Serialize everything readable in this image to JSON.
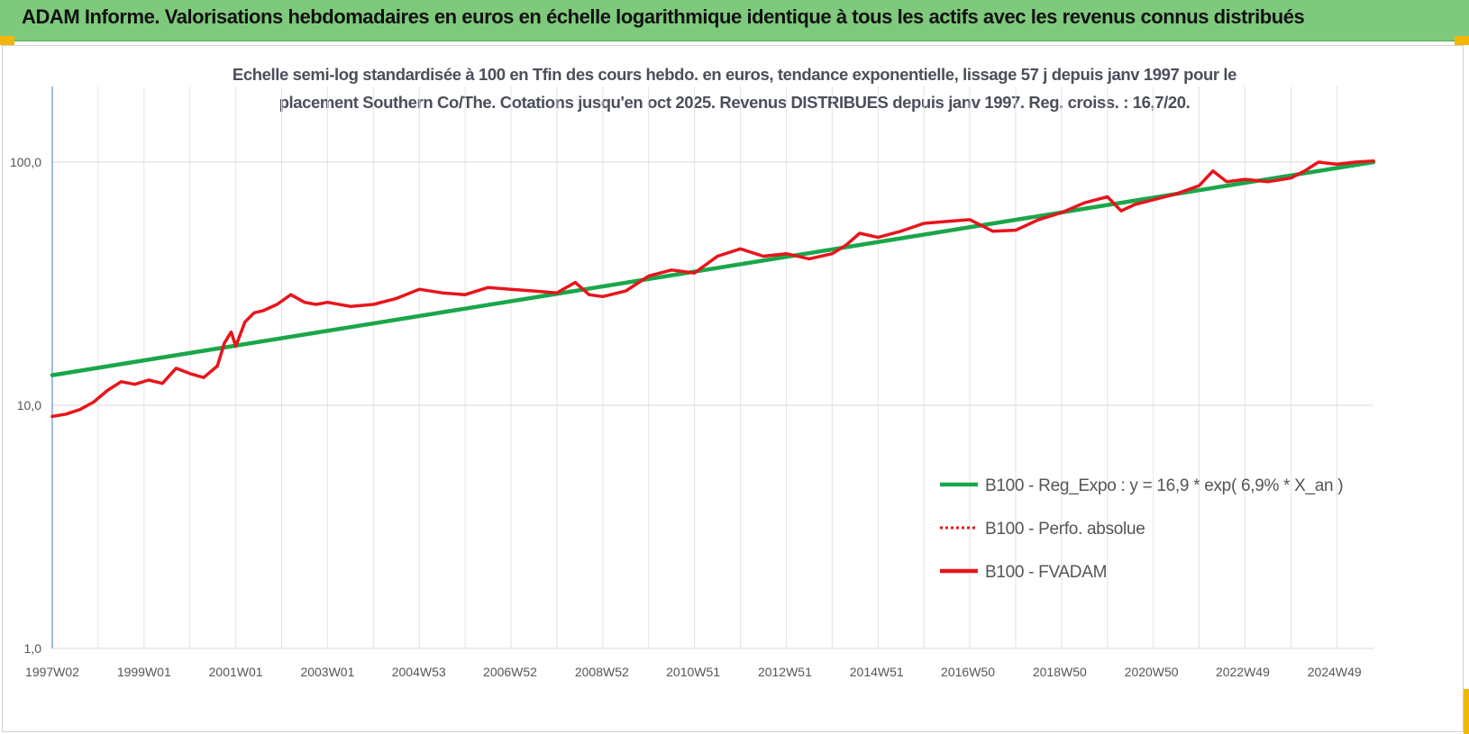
{
  "header": {
    "title": "ADAM Informe. Valorisations hebdomadaires en euros en échelle logarithmique identique à tous les actifs avec les revenus connus distribués",
    "background": "#7ec97c"
  },
  "chart_data": {
    "type": "line",
    "title_line1": "Echelle semi-log standardisée à 100 en Tfin des cours hebdo. en euros, tendance exponentielle, lissage 57 j depuis janv 1997 pour le",
    "title_line2": "placement Southern Co/The. Cotations jusqu'en oct 2025.  Revenus DISTRIBUES depuis janv 1997.  Reg. croiss. : 16,7/20.",
    "y_scale": "log",
    "ylim": [
      1,
      200
    ],
    "y_ticks": [
      1,
      10,
      100
    ],
    "y_tick_labels": [
      "1,0",
      "10,0",
      "100,0"
    ],
    "xlim": [
      1997.0,
      2025.8
    ],
    "x_ticks": [
      1997.0,
      1999.0,
      2001.0,
      2003.0,
      2004.99,
      2006.98,
      2008.98,
      2010.97,
      2012.97,
      2014.97,
      2016.96,
      2018.96,
      2020.96,
      2022.95,
      2024.95
    ],
    "x_tick_labels": [
      "1997W02",
      "1999W01",
      "2001W01",
      "2003W01",
      "2004W53",
      "2006W52",
      "2008W52",
      "2010W51",
      "2012W51",
      "2014W51",
      "2016W50",
      "2018W50",
      "2020W50",
      "2022W49",
      "2024W49"
    ],
    "grid": true,
    "legend_position": "bottom-right",
    "series": [
      {
        "name": "B100 - Reg_Expo : y = 16,9 * exp( 6,9% *  X_an )",
        "color": "#1aa64a",
        "style": "solid",
        "x": [
          1997.0,
          2025.8
        ],
        "values": [
          13.3,
          100.0
        ]
      },
      {
        "name": "B100 - Perfo. absolue",
        "color": "#e8141c",
        "style": "dotted",
        "x": [],
        "values": []
      },
      {
        "name": "B100 - FVADAM",
        "color": "#e8141c",
        "style": "solid",
        "x": [
          1997.0,
          1997.3,
          1997.6,
          1997.9,
          1998.2,
          1998.5,
          1998.8,
          1999.1,
          1999.4,
          1999.7,
          2000.0,
          2000.3,
          2000.6,
          2000.75,
          2000.9,
          2001.0,
          2001.2,
          2001.4,
          2001.6,
          2001.9,
          2002.2,
          2002.5,
          2002.75,
          2003.0,
          2003.5,
          2004.0,
          2004.5,
          2005.0,
          2005.5,
          2006.0,
          2006.5,
          2007.0,
          2007.5,
          2008.0,
          2008.4,
          2008.7,
          2009.0,
          2009.5,
          2010.0,
          2010.5,
          2011.0,
          2011.5,
          2012.0,
          2012.5,
          2013.0,
          2013.5,
          2014.0,
          2014.3,
          2014.6,
          2015.0,
          2015.5,
          2016.0,
          2016.5,
          2017.0,
          2017.5,
          2018.0,
          2018.5,
          2019.0,
          2019.5,
          2020.0,
          2020.3,
          2020.6,
          2021.0,
          2021.5,
          2022.0,
          2022.3,
          2022.6,
          2023.0,
          2023.5,
          2024.0,
          2024.3,
          2024.6,
          2025.0,
          2025.4,
          2025.8
        ],
        "values": [
          9.0,
          9.2,
          9.6,
          10.3,
          11.5,
          12.5,
          12.2,
          12.7,
          12.3,
          14.2,
          13.5,
          13.0,
          14.5,
          18.0,
          20.0,
          17.5,
          22.0,
          24.0,
          24.5,
          26.0,
          28.5,
          26.5,
          26.0,
          26.5,
          25.5,
          26.0,
          27.5,
          30.0,
          29.0,
          28.5,
          30.5,
          30.0,
          29.5,
          29.0,
          32.0,
          28.5,
          28.0,
          29.5,
          34.0,
          36.0,
          35.0,
          41.0,
          44.0,
          41.0,
          42.0,
          40.0,
          42.0,
          45.5,
          51.0,
          49.0,
          52.0,
          56.0,
          57.0,
          58.0,
          52.0,
          52.5,
          58.0,
          62.0,
          68.0,
          72.0,
          63.0,
          67.0,
          70.0,
          74.0,
          80.0,
          92.0,
          83.0,
          85.0,
          83.0,
          86.0,
          92.0,
          100.0,
          98.0,
          100.0,
          101.0
        ]
      }
    ]
  }
}
